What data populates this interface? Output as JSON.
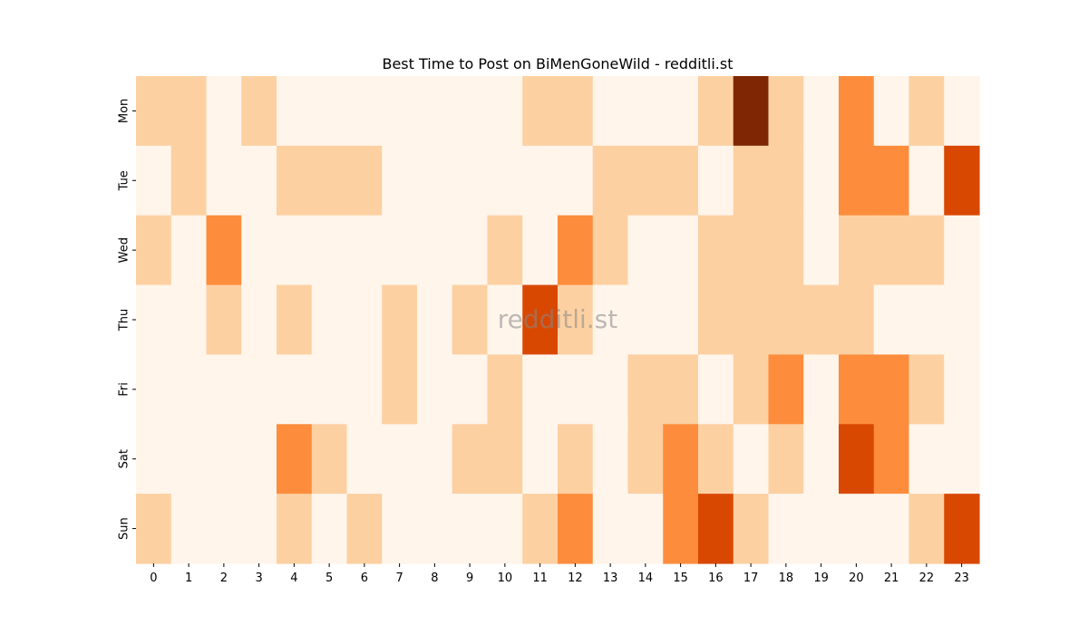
{
  "chart_data": {
    "type": "heatmap",
    "title": "Best Time to Post on BiMenGoneWild - redditli.st",
    "watermark": "redditli.st",
    "x_categories": [
      "0",
      "1",
      "2",
      "3",
      "4",
      "5",
      "6",
      "7",
      "8",
      "9",
      "10",
      "11",
      "12",
      "13",
      "14",
      "15",
      "16",
      "17",
      "18",
      "19",
      "20",
      "21",
      "22",
      "23"
    ],
    "y_categories": [
      "Mon",
      "Tue",
      "Wed",
      "Thu",
      "Fri",
      "Sat",
      "Sun"
    ],
    "colormap": "Oranges",
    "value_range": [
      0,
      4
    ],
    "values": [
      [
        1,
        1,
        0,
        1,
        0,
        0,
        0,
        0,
        0,
        0,
        0,
        1,
        1,
        0,
        0,
        0,
        1,
        4,
        1,
        0,
        2,
        0,
        1,
        0
      ],
      [
        0,
        1,
        0,
        0,
        1,
        1,
        1,
        0,
        0,
        0,
        0,
        0,
        0,
        1,
        1,
        1,
        0,
        1,
        1,
        0,
        2,
        2,
        0,
        3
      ],
      [
        1,
        0,
        2,
        0,
        0,
        0,
        0,
        0,
        0,
        0,
        1,
        0,
        2,
        1,
        0,
        0,
        1,
        1,
        1,
        0,
        1,
        1,
        1,
        0
      ],
      [
        0,
        0,
        1,
        0,
        1,
        0,
        0,
        1,
        0,
        1,
        0,
        3,
        1,
        0,
        0,
        0,
        1,
        1,
        1,
        1,
        1,
        0,
        0,
        0
      ],
      [
        0,
        0,
        0,
        0,
        0,
        0,
        0,
        1,
        0,
        0,
        1,
        0,
        0,
        0,
        1,
        1,
        0,
        1,
        2,
        0,
        2,
        2,
        1,
        0
      ],
      [
        0,
        0,
        0,
        0,
        2,
        1,
        0,
        0,
        0,
        1,
        1,
        0,
        1,
        0,
        1,
        2,
        1,
        0,
        1,
        0,
        3,
        2,
        0,
        0
      ],
      [
        1,
        0,
        0,
        0,
        1,
        0,
        1,
        0,
        0,
        0,
        0,
        1,
        2,
        0,
        0,
        2,
        3,
        1,
        0,
        0,
        0,
        0,
        1,
        3
      ]
    ],
    "level_colors": [
      "#fff5eb",
      "#fdd0a2",
      "#fd8d3c",
      "#d94801",
      "#7f2704"
    ]
  }
}
